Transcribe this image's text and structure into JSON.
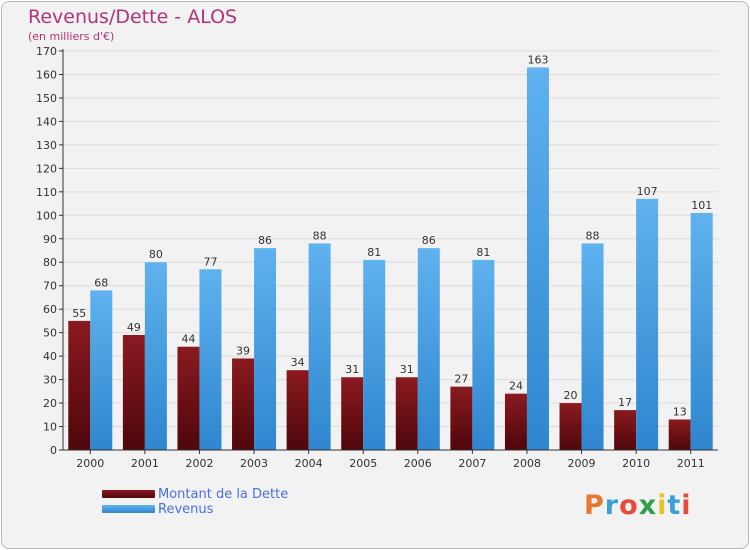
{
  "header": {
    "title": "Revenus/Dette - ALOS",
    "subtitle": "(en milliers d'€)"
  },
  "legend": [
    {
      "label": "Montant de la Dette",
      "color": "#6e0d12"
    },
    {
      "label": "Revenus",
      "color": "#4aa3e6"
    }
  ],
  "brand": {
    "text": "Proxiti",
    "colors": [
      "#e9772e",
      "#3aa0d8",
      "#e94a3a",
      "#2e9e4a",
      "#e9c02e",
      "#3aa0d8",
      "#e94a3a"
    ]
  },
  "chart_data": {
    "type": "bar",
    "title": "Revenus/Dette - ALOS",
    "subtitle": "(en milliers d'€)",
    "xlabel": "",
    "ylabel": "",
    "ylim": [
      0,
      170
    ],
    "yticks": [
      0,
      10,
      20,
      30,
      40,
      50,
      60,
      70,
      80,
      90,
      100,
      110,
      120,
      130,
      140,
      150,
      160,
      170
    ],
    "grid": true,
    "legend_position": "bottom-left",
    "categories": [
      "2000",
      "2001",
      "2002",
      "2003",
      "2004",
      "2005",
      "2006",
      "2007",
      "2008",
      "2009",
      "2010",
      "2011"
    ],
    "series": [
      {
        "name": "Montant de la Dette",
        "color": "#6e0d12",
        "values": [
          55,
          49,
          44,
          39,
          34,
          31,
          31,
          27,
          24,
          20,
          17,
          13
        ]
      },
      {
        "name": "Revenus",
        "color": "#4aa3e6",
        "values": [
          68,
          80,
          77,
          86,
          88,
          81,
          86,
          81,
          163,
          88,
          107,
          101
        ]
      }
    ]
  }
}
